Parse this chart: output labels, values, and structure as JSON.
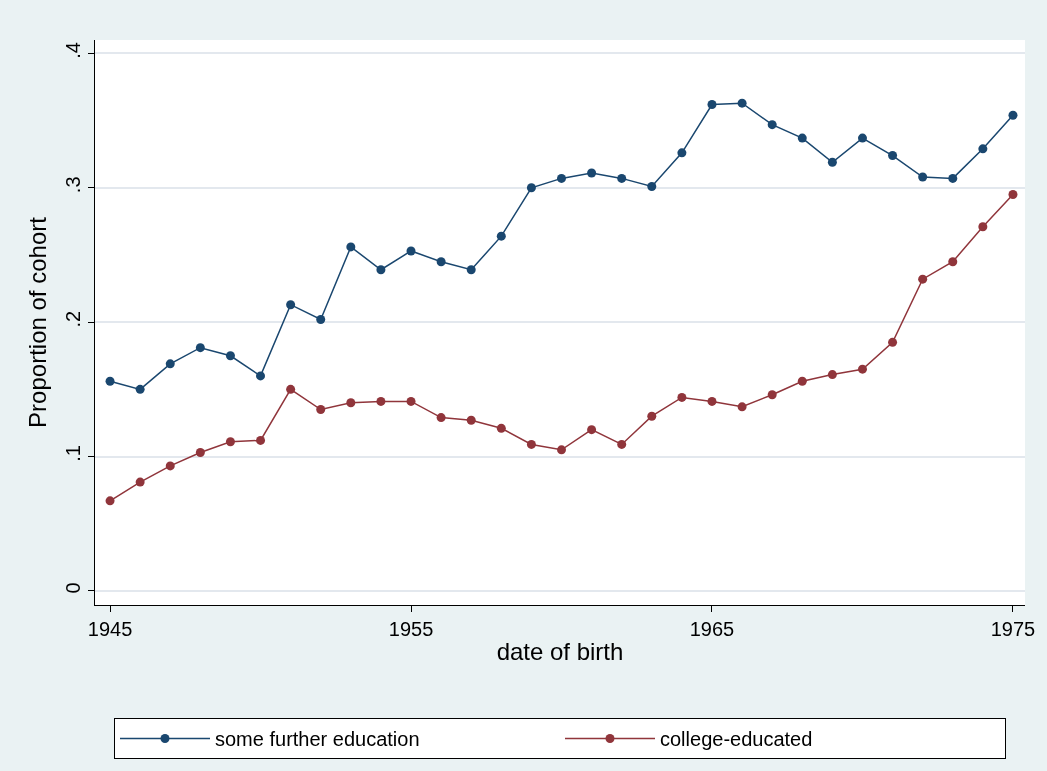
{
  "chart_data": {
    "type": "line",
    "xlabel": "date of birth",
    "ylabel": "Proportion of cohort",
    "x": [
      1945,
      1946,
      1947,
      1948,
      1949,
      1950,
      1951,
      1952,
      1953,
      1954,
      1955,
      1956,
      1957,
      1958,
      1959,
      1960,
      1961,
      1962,
      1963,
      1964,
      1965,
      1966,
      1967,
      1968,
      1969,
      1970,
      1971,
      1972,
      1973,
      1974,
      1975
    ],
    "series": [
      {
        "name": "some further education",
        "color": "#1a476f",
        "values": [
          0.156,
          0.15,
          0.169,
          0.181,
          0.175,
          0.16,
          0.213,
          0.202,
          0.256,
          0.239,
          0.253,
          0.245,
          0.239,
          0.264,
          0.3,
          0.307,
          0.311,
          0.307,
          0.301,
          0.326,
          0.362,
          0.363,
          0.347,
          0.337,
          0.319,
          0.337,
          0.324,
          0.308,
          0.307,
          0.329,
          0.354
        ]
      },
      {
        "name": "college-educated",
        "color": "#90353b",
        "values": [
          0.067,
          0.081,
          0.093,
          0.103,
          0.111,
          0.112,
          0.15,
          0.135,
          0.14,
          0.141,
          0.141,
          0.129,
          0.127,
          0.121,
          0.109,
          0.105,
          0.12,
          0.109,
          0.13,
          0.144,
          0.141,
          0.137,
          0.146,
          0.156,
          0.161,
          0.165,
          0.185,
          0.232,
          0.245,
          0.271,
          0.295
        ]
      }
    ],
    "xlim": [
      1944.5,
      1975.4
    ],
    "xticks": [
      1945,
      1955,
      1965,
      1975
    ],
    "ylim": [
      -0.0105,
      0.41
    ],
    "yticks": [
      {
        "value": 0,
        "label": "0"
      },
      {
        "value": 0.1,
        "label": ".1"
      },
      {
        "value": 0.2,
        "label": ".2"
      },
      {
        "value": 0.3,
        "label": ".3"
      },
      {
        "value": 0.4,
        "label": ".4"
      }
    ],
    "grid": "y",
    "legend": "bottom",
    "marker": "circle",
    "line_style": "solid"
  }
}
